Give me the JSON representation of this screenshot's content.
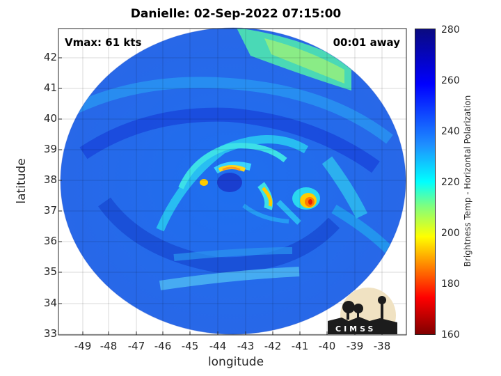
{
  "title": "Danielle: 02-Sep-2022 07:15:00",
  "vmax": "Vmax: 61 kts",
  "away": "00:01 away",
  "axes": {
    "xlabel": "longitude",
    "ylabel": "latitude",
    "xticks": [
      "-49",
      "-48",
      "-47",
      "-46",
      "-45",
      "-44",
      "-43",
      "-42",
      "-41",
      "-40",
      "-39",
      "-38"
    ],
    "yticks": [
      "42",
      "41",
      "40",
      "39",
      "38",
      "37",
      "36",
      "35",
      "34",
      "33"
    ]
  },
  "colorbar": {
    "label": "Brightness Temp - Horizontal Polarization",
    "ticks": [
      "280",
      "260",
      "240",
      "220",
      "200",
      "180",
      "160"
    ]
  },
  "logo": {
    "text": "CIMSS",
    "icon": "cimss-logo-icon"
  },
  "colors": {
    "background": "#2a6dee",
    "core": "#00e5ff",
    "hot": "#ffcc00",
    "max": "#ff3300"
  }
}
